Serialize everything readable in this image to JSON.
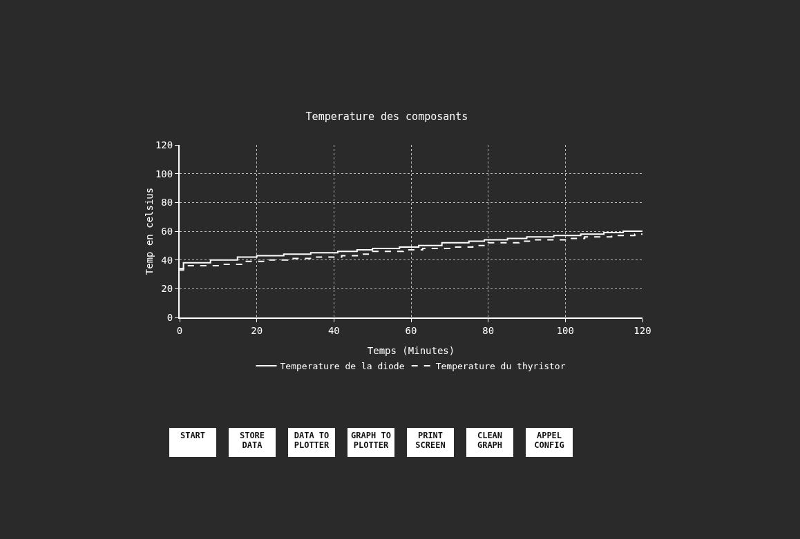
{
  "chart_data": {
    "type": "step",
    "title": "Temperature des composants",
    "xlabel": "Temps (Minutes)",
    "ylabel": "Temp en celsius",
    "x": [
      0,
      1,
      8,
      15,
      20,
      27,
      34,
      41,
      46,
      50,
      57,
      62,
      68,
      75,
      79,
      85,
      90,
      97,
      104,
      110,
      115,
      120
    ],
    "series": [
      {
        "name": "Temperature de la diode",
        "color": "#ffffff",
        "line_style": "solid",
        "values": [
          34,
          38,
          40,
          42,
          43,
          44,
          45,
          46,
          47,
          48,
          49,
          50,
          52,
          53,
          54,
          55,
          56,
          57,
          58,
          59,
          60,
          60
        ]
      },
      {
        "name": "Temperature du thyristor",
        "color": "#ffffff",
        "line_style": "dashed",
        "x": [
          0,
          1,
          10,
          17,
          22,
          28,
          35,
          42,
          47,
          50,
          58,
          63,
          70,
          76,
          80,
          88,
          92,
          100,
          105,
          112,
          118,
          120
        ],
        "values": [
          33,
          36,
          37,
          39,
          40,
          41,
          42,
          43,
          44,
          46,
          47,
          48,
          49,
          50,
          52,
          53,
          54,
          55,
          56,
          57,
          58,
          58
        ]
      }
    ],
    "xlim": [
      0,
      120
    ],
    "xticks": [
      0,
      20,
      40,
      60,
      80,
      100,
      120
    ],
    "ylim": [
      0,
      120
    ],
    "yticks": [
      0,
      20,
      40,
      60,
      80,
      100,
      120
    ],
    "grid": true,
    "legend": "bottom",
    "annotations": [
      "START",
      "STORE DATA",
      "DATA TO PLOTTER",
      "GRAPH TO PLOTTER",
      "PRINT SCREEN",
      "CLEAN GRAPH",
      "APPEL CONFIG"
    ]
  }
}
